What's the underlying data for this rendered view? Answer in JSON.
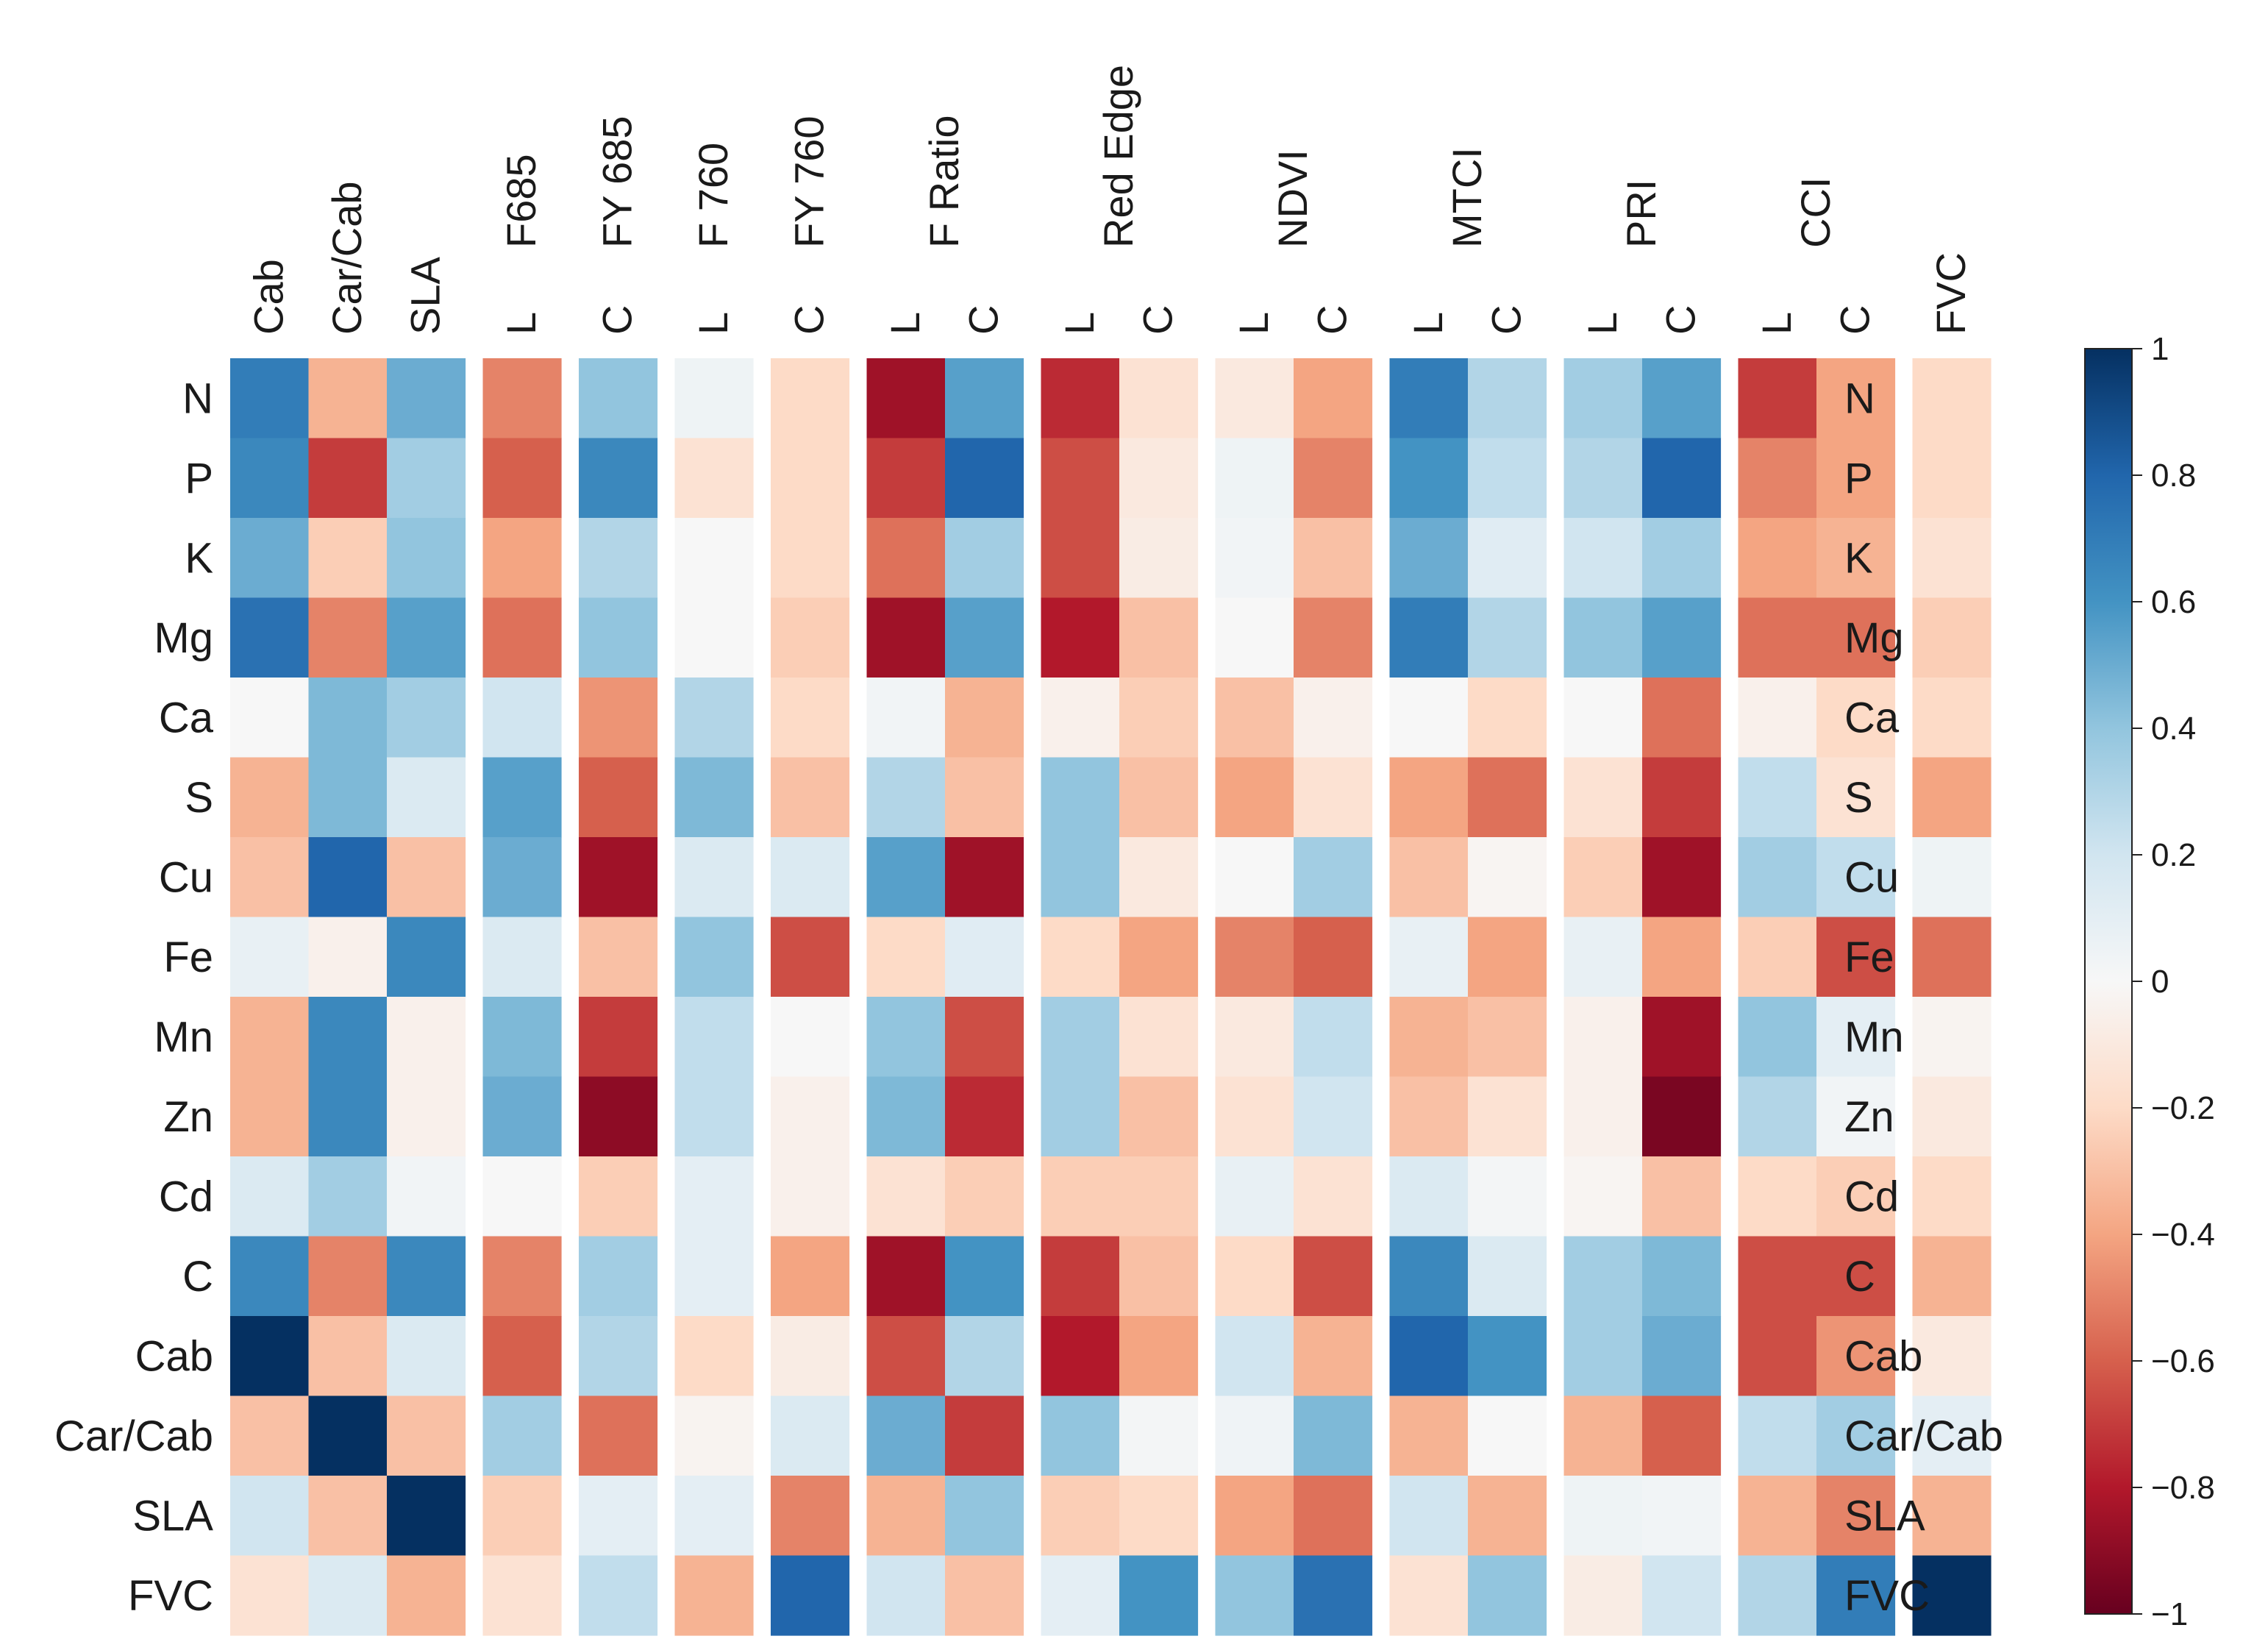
{
  "chart_data": {
    "type": "heatmap",
    "title": "",
    "columns": [
      "Cab",
      "Car/Cab",
      "SLA",
      "L",
      "C",
      "L",
      "C",
      "L",
      "C",
      "L",
      "C",
      "L",
      "C",
      "L",
      "C",
      "L",
      "C",
      "L",
      "C",
      "FVC"
    ],
    "column_groups": [
      {
        "label": "F685",
        "cols": [
          3
        ]
      },
      {
        "label": "FY 685",
        "cols": [
          4
        ]
      },
      {
        "label": "F 760",
        "cols": [
          5
        ]
      },
      {
        "label": "FY 760",
        "cols": [
          6
        ]
      },
      {
        "label": "F Ratio",
        "cols": [
          7,
          8
        ]
      },
      {
        "label": "Red Edge",
        "cols": [
          9,
          10
        ]
      },
      {
        "label": "NDVI",
        "cols": [
          11,
          12
        ]
      },
      {
        "label": "MTCI",
        "cols": [
          13,
          14
        ]
      },
      {
        "label": "PRI",
        "cols": [
          15,
          16
        ]
      },
      {
        "label": "CCI",
        "cols": [
          17,
          18
        ]
      }
    ],
    "rows": [
      "N",
      "P",
      "K",
      "Mg",
      "Ca",
      "S",
      "Cu",
      "Fe",
      "Mn",
      "Zn",
      "Cd",
      "C",
      "Cab",
      "Car/Cab",
      "SLA",
      "FVC"
    ],
    "values": [
      [
        0.7,
        -0.35,
        0.5,
        -0.5,
        0.4,
        0.05,
        -0.2,
        -0.85,
        0.55,
        -0.75,
        -0.15,
        -0.1,
        -0.4,
        0.7,
        0.3,
        0.35,
        0.55,
        -0.7,
        -0.4,
        -0.2
      ],
      [
        0.65,
        -0.7,
        0.35,
        -0.6,
        0.65,
        -0.15,
        -0.2,
        -0.7,
        0.8,
        -0.65,
        -0.1,
        0.05,
        -0.5,
        0.6,
        0.25,
        0.3,
        0.8,
        -0.5,
        -0.4,
        -0.2
      ],
      [
        0.5,
        -0.25,
        0.4,
        -0.4,
        0.3,
        0.0,
        -0.2,
        -0.55,
        0.35,
        -0.65,
        -0.08,
        0.03,
        -0.3,
        0.5,
        0.12,
        0.2,
        0.35,
        -0.4,
        -0.35,
        -0.15
      ],
      [
        0.75,
        -0.5,
        0.55,
        -0.55,
        0.4,
        0.0,
        -0.25,
        -0.85,
        0.55,
        -0.8,
        -0.3,
        0.0,
        -0.5,
        0.7,
        0.3,
        0.4,
        0.55,
        -0.55,
        -0.55,
        -0.25
      ],
      [
        0.0,
        0.45,
        0.35,
        0.2,
        -0.45,
        0.3,
        -0.2,
        0.03,
        -0.35,
        -0.05,
        -0.25,
        -0.3,
        -0.05,
        0.0,
        -0.2,
        0.0,
        -0.55,
        -0.05,
        -0.2,
        -0.2
      ],
      [
        -0.35,
        0.45,
        0.15,
        0.55,
        -0.6,
        0.45,
        -0.3,
        0.3,
        -0.3,
        0.4,
        -0.3,
        -0.4,
        -0.15,
        -0.4,
        -0.55,
        -0.15,
        -0.7,
        0.25,
        -0.15,
        -0.4
      ],
      [
        -0.3,
        0.8,
        -0.3,
        0.5,
        -0.85,
        0.15,
        0.15,
        0.55,
        -0.85,
        0.4,
        -0.1,
        0.0,
        0.35,
        -0.3,
        -0.02,
        -0.25,
        -0.85,
        0.35,
        0.25,
        0.05
      ],
      [
        0.08,
        -0.05,
        0.65,
        0.15,
        -0.3,
        0.4,
        -0.65,
        -0.2,
        0.12,
        -0.2,
        -0.4,
        -0.5,
        -0.6,
        0.08,
        -0.4,
        0.08,
        -0.4,
        -0.25,
        -0.65,
        -0.55
      ],
      [
        -0.35,
        0.65,
        -0.05,
        0.45,
        -0.7,
        0.25,
        0.0,
        0.4,
        -0.65,
        0.35,
        -0.15,
        -0.1,
        0.25,
        -0.35,
        -0.3,
        -0.05,
        -0.85,
        0.4,
        0.1,
        -0.03
      ],
      [
        -0.35,
        0.65,
        -0.05,
        0.5,
        -0.9,
        0.25,
        -0.05,
        0.45,
        -0.75,
        0.35,
        -0.3,
        -0.15,
        0.2,
        -0.3,
        -0.15,
        -0.05,
        -0.95,
        0.3,
        0.03,
        -0.1
      ],
      [
        0.15,
        0.35,
        0.03,
        0.0,
        -0.25,
        0.1,
        -0.05,
        -0.15,
        -0.25,
        -0.25,
        -0.25,
        0.08,
        -0.15,
        0.15,
        0.02,
        -0.02,
        -0.3,
        -0.2,
        -0.25,
        -0.2
      ],
      [
        0.65,
        -0.5,
        0.65,
        -0.5,
        0.35,
        0.1,
        -0.4,
        -0.85,
        0.6,
        -0.7,
        -0.3,
        -0.2,
        -0.65,
        0.65,
        0.15,
        0.35,
        0.45,
        -0.65,
        -0.65,
        -0.35
      ],
      [
        1.0,
        -0.3,
        0.15,
        -0.6,
        0.3,
        -0.2,
        -0.08,
        -0.65,
        0.3,
        -0.8,
        -0.4,
        0.2,
        -0.35,
        0.8,
        0.6,
        0.35,
        0.5,
        -0.65,
        -0.45,
        -0.1
      ],
      [
        -0.3,
        1.0,
        -0.3,
        0.35,
        -0.55,
        -0.03,
        0.15,
        0.5,
        -0.7,
        0.4,
        0.02,
        0.04,
        0.45,
        -0.35,
        0.0,
        -0.35,
        -0.6,
        0.25,
        0.35,
        0.1
      ],
      [
        0.2,
        -0.3,
        1.0,
        -0.25,
        0.1,
        0.1,
        -0.5,
        -0.35,
        0.4,
        -0.25,
        -0.2,
        -0.4,
        -0.55,
        0.2,
        -0.35,
        0.05,
        0.03,
        -0.35,
        -0.5,
        -0.35
      ],
      [
        -0.15,
        0.15,
        -0.35,
        -0.15,
        0.25,
        -0.35,
        0.8,
        0.2,
        -0.3,
        0.1,
        0.6,
        0.4,
        0.75,
        -0.15,
        0.4,
        -0.08,
        0.2,
        0.3,
        0.7,
        1.0
      ]
    ],
    "colorbar": {
      "min": -1,
      "max": 1,
      "colormap": "RdBu",
      "ticks": [
        1,
        0.8,
        0.6,
        0.4,
        0.2,
        0,
        -0.2,
        -0.4,
        -0.6,
        -0.8,
        -1
      ],
      "tick_labels": [
        "1",
        "0.8",
        "0.6",
        "0.4",
        "0.2",
        "0",
        "−0.2",
        "−0.4",
        "−0.6",
        "−0.8",
        "−1"
      ]
    },
    "axes": {
      "rows_labelled": "left and right",
      "columns_labelled": "top"
    }
  }
}
